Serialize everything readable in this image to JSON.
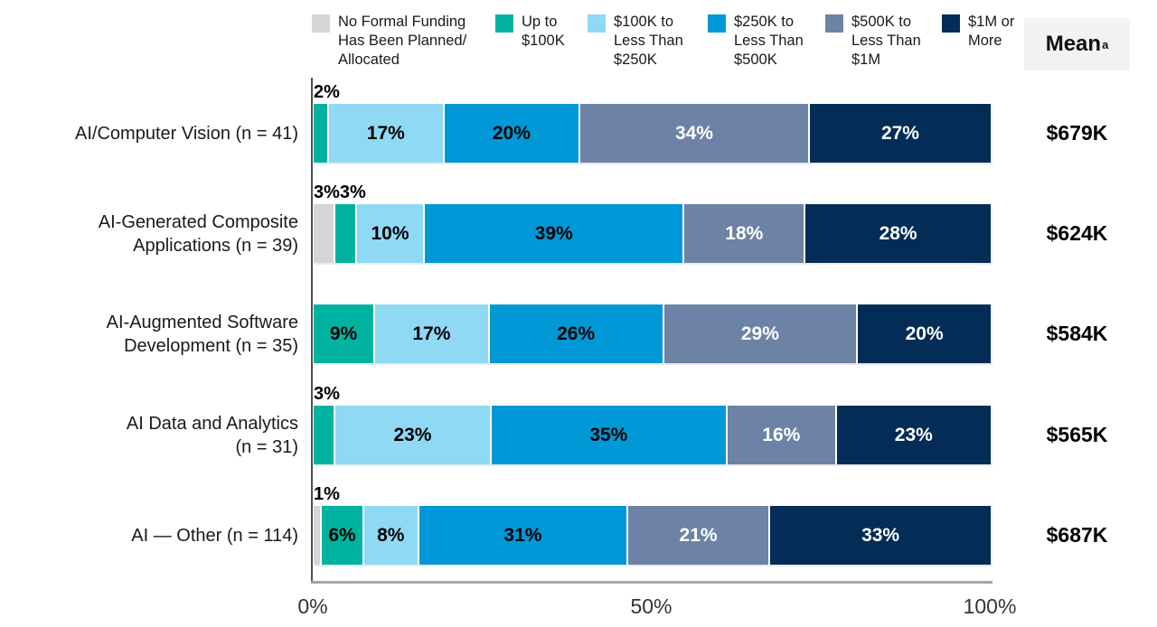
{
  "legend": {
    "items": [
      {
        "label": "No Formal Funding\nHas Been Planned/\nAllocated",
        "color": "#d6d6d6"
      },
      {
        "label": "Up to\n$100K",
        "color": "#00b3a1"
      },
      {
        "label": "$100K to\nLess Than\n$250K",
        "color": "#90d9f5"
      },
      {
        "label": "$250K to\nLess Than\n$500K",
        "color": "#0098d6"
      },
      {
        "label": "$500K to\nLess Than\n$1M",
        "color": "#6d83a6"
      },
      {
        "label": "$1M or\nMore",
        "color": "#032c57"
      }
    ]
  },
  "mean_column": {
    "header": "Mean",
    "header_superscript": "a"
  },
  "chart_data": {
    "type": "bar",
    "stacked": true,
    "orientation": "horizontal",
    "title": "",
    "xlabel": "",
    "ylabel": "",
    "xlim": [
      0,
      100
    ],
    "grid": false,
    "legend_position": "top",
    "value_suffix": "%",
    "outside_label_threshold": 5,
    "categories": [
      "AI/Computer Vision (n = 41)",
      "AI-Generated Composite\nApplications (n = 39)",
      "AI-Augmented Software\nDevelopment (n = 35)",
      "AI Data and Analytics\n(n = 31)",
      "AI — Other (n = 114)"
    ],
    "series": [
      {
        "name": "No Formal Funding Has Been Planned/Allocated",
        "color": "#d6d6d6",
        "label_color": "#000000",
        "values": [
          0,
          3,
          0,
          0,
          1
        ]
      },
      {
        "name": "Up to $100K",
        "color": "#00b3a1",
        "label_color": "#000000",
        "values": [
          2,
          3,
          9,
          3,
          6
        ]
      },
      {
        "name": "$100K to Less Than $250K",
        "color": "#90d9f5",
        "label_color": "#000000",
        "values": [
          17,
          10,
          17,
          23,
          8
        ]
      },
      {
        "name": "$250K to Less Than $500K",
        "color": "#0098d6",
        "label_color": "#000000",
        "values": [
          20,
          39,
          26,
          35,
          31
        ]
      },
      {
        "name": "$500K to Less Than $1M",
        "color": "#6d83a6",
        "label_color": "#ffffff",
        "values": [
          34,
          18,
          29,
          16,
          21
        ]
      },
      {
        "name": "$1M or More",
        "color": "#032c57",
        "label_color": "#ffffff",
        "values": [
          27,
          28,
          20,
          23,
          33
        ]
      }
    ],
    "means": [
      "$679K",
      "$624K",
      "$584K",
      "$565K",
      "$687K"
    ],
    "x_ticks": [
      {
        "label": "0%",
        "value": 0
      },
      {
        "label": "50%",
        "value": 50
      },
      {
        "label": "100%",
        "value": 100
      }
    ]
  }
}
